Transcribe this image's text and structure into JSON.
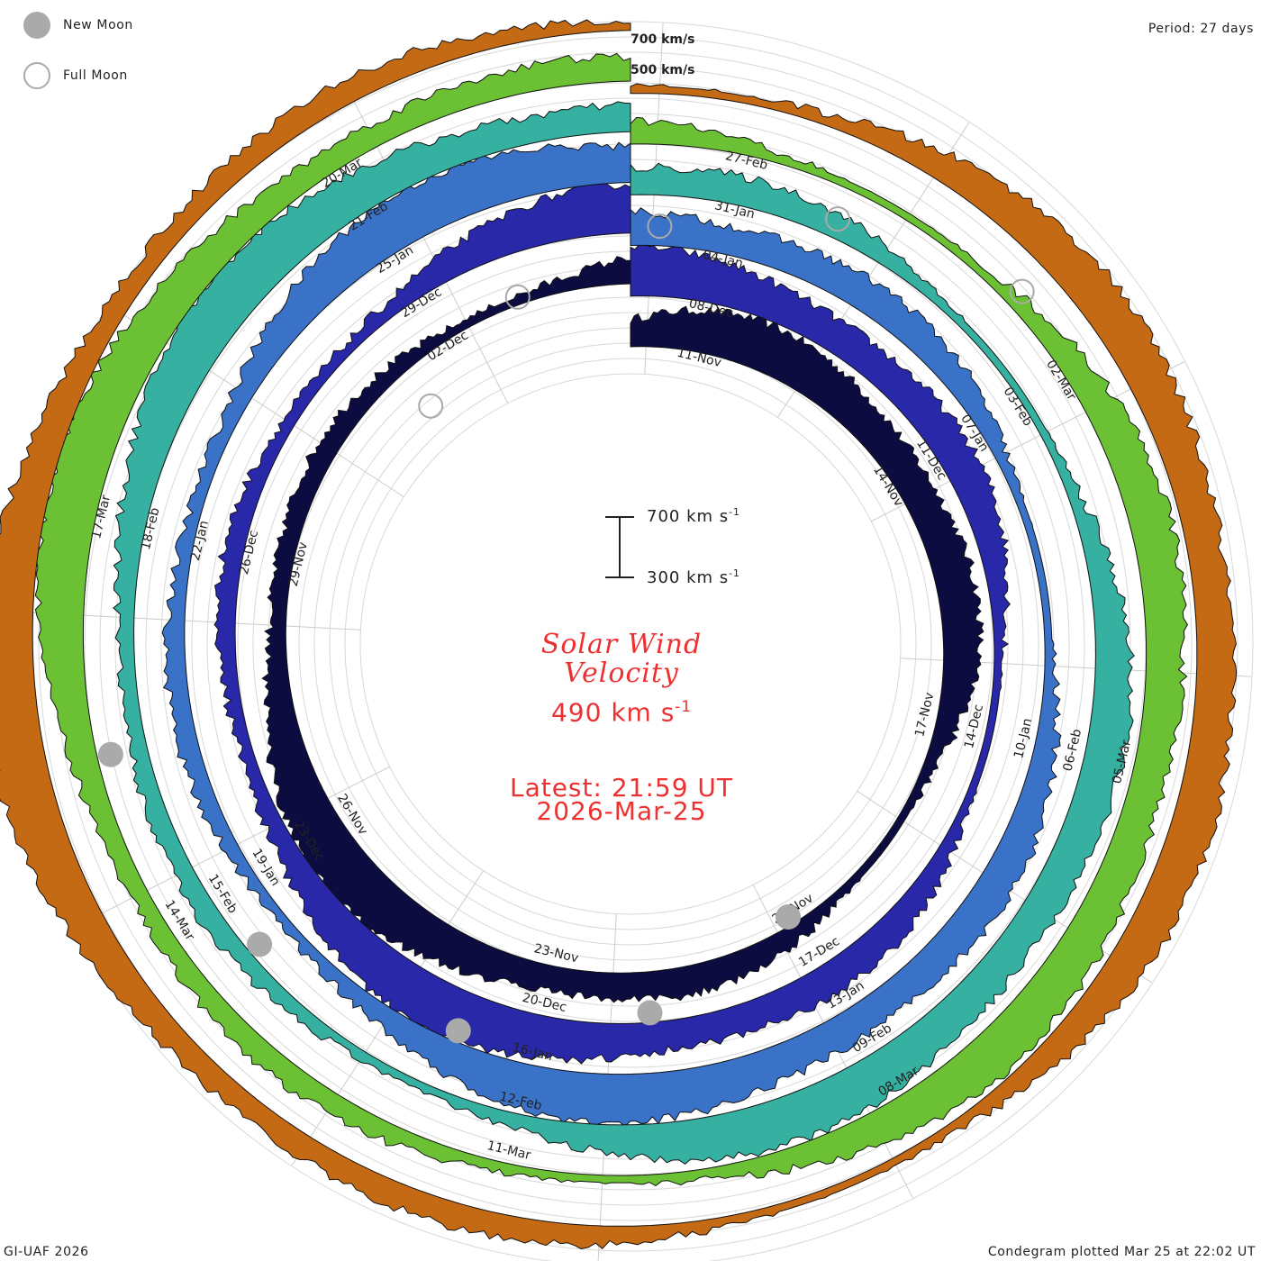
{
  "legend": {
    "new_moon": "New Moon",
    "full_moon": "Full Moon"
  },
  "period": "Period: 27 days",
  "footer_left": "GI-UAF 2026",
  "footer_right": "Condegram plotted Mar 25 at 22:02 UT",
  "center": {
    "title_line1": "Solar Wind",
    "title_line2": "Velocity",
    "current_value": "490",
    "current_unit": "km s",
    "latest_label": "Latest: 21:59 UT",
    "latest_date": "2026-Mar-25"
  },
  "scale_bar": {
    "top_label": "700 km s",
    "bottom_label": "300 km s",
    "unit_exponent": "-1"
  },
  "outer_scale": {
    "upper": "700 km/s",
    "lower": "500 km/s"
  },
  "colors": {
    "accent_text": "#ee3030",
    "new_moon": "#aaaaaa",
    "full_moon_outline": "#aaaaaa"
  },
  "chart_data": {
    "type": "condegram",
    "title": "Solar Wind Velocity",
    "period_days": 27,
    "range_kms": [
      300,
      700
    ],
    "rotations": [
      {
        "color": "#0c0c40",
        "date_labels": [
          "11-Nov",
          "14-Nov",
          "17-Nov",
          "20-Nov",
          "23-Nov",
          "26-Nov",
          "29-Nov",
          "02-Dec"
        ]
      },
      {
        "color": "#2828a8",
        "date_labels": [
          "08-Dec",
          "11-Dec",
          "14-Dec",
          "17-Dec",
          "20-Dec",
          "23-Dec",
          "26-Dec",
          "29-Dec"
        ]
      },
      {
        "color": "#3a72c8",
        "date_labels": [
          "04-Jan",
          "07-Jan",
          "10-Jan",
          "13-Jan",
          "16-Jan",
          "19-Jan",
          "22-Jan",
          "25-Jan"
        ]
      },
      {
        "color": "#36b0a0",
        "date_labels": [
          "31-Jan",
          "03-Feb",
          "06-Feb",
          "09-Feb",
          "12-Feb",
          "15-Feb",
          "18-Feb",
          "21-Feb"
        ]
      },
      {
        "color": "#6cc034",
        "date_labels": [
          "27-Feb",
          "02-Mar",
          "05-Mar",
          "08-Mar",
          "11-Mar",
          "14-Mar",
          "17-Mar",
          "20-Mar"
        ]
      },
      {
        "color": "#c46a14",
        "date_labels": []
      }
    ],
    "new_moons": [
      "20-Nov",
      "20-Dec",
      "18-Jan",
      "17-Feb",
      "19-Mar"
    ],
    "full_moons": [
      "05-Nov",
      "04-Dec",
      "03-Jan",
      "01-Feb",
      "03-Mar"
    ]
  }
}
